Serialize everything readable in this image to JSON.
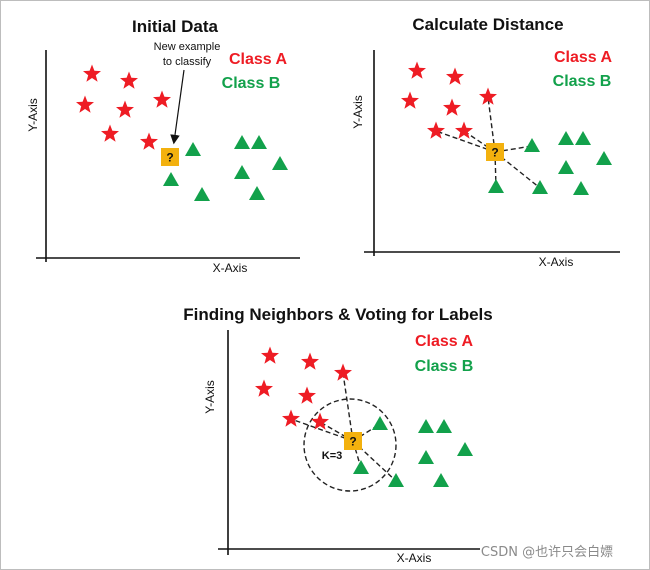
{
  "colors": {
    "class_a": "#ee1c24",
    "class_b": "#12a14b",
    "query": "#f3b10e",
    "text": "#111111",
    "watermark": "#8a8a8a"
  },
  "legend": {
    "class_a": "Class A",
    "class_b": "Class B"
  },
  "axes": {
    "x": "X-Axis",
    "y": "Y-Axis"
  },
  "query_symbol": "?",
  "panels": {
    "initial": {
      "title": "Initial Data",
      "annotation_line1": "New example",
      "annotation_line2": "to classify"
    },
    "distance": {
      "title": "Calculate Distance"
    },
    "voting": {
      "title": "Finding Neighbors & Voting for Labels",
      "k_label": "K=3"
    }
  },
  "watermark": "CSDN @也许只会白嫖",
  "icons": {
    "class_a": "star-icon",
    "class_b": "triangle-icon",
    "query": "question-box-icon",
    "arrow": "arrow-icon"
  }
}
